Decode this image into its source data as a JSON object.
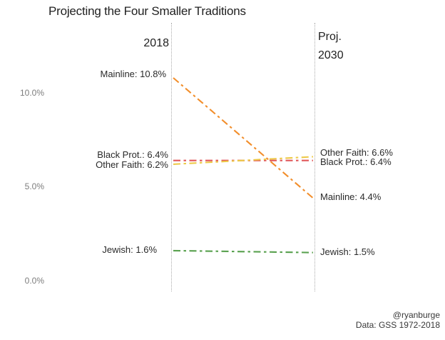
{
  "title": "Projecting the Four Smaller Traditions",
  "columns": {
    "left_header": "2018",
    "right_header_line1": "Proj.",
    "right_header_line2": "2030"
  },
  "axis": {
    "ticks": [
      {
        "label": "10.0%",
        "value": 10.0
      },
      {
        "label": "5.0%",
        "value": 5.0
      },
      {
        "label": "0.0%",
        "value": 0.0
      }
    ]
  },
  "footer": {
    "handle": "@ryanburge",
    "source": "Data: GSS 1972-2018"
  },
  "chart_data": {
    "type": "line",
    "subtype": "slope-chart",
    "categories": [
      "2018",
      "Proj. 2030"
    ],
    "series": [
      {
        "name": "Mainline",
        "values": [
          10.8,
          4.4
        ],
        "color": "#F28E2B",
        "left_label": "Mainline: 10.8%",
        "right_label": "Mainline: 4.4%"
      },
      {
        "name": "Black Prot.",
        "values": [
          6.4,
          6.4
        ],
        "color": "#E15759",
        "left_label": "Black Prot.: 6.4%",
        "right_label": "Black Prot.: 6.4%"
      },
      {
        "name": "Other Faith",
        "values": [
          6.2,
          6.6
        ],
        "color": "#EDC948",
        "left_label": "Other Faith: 6.2%",
        "right_label": "Other Faith: 6.6%"
      },
      {
        "name": "Jewish",
        "values": [
          1.6,
          1.5
        ],
        "color": "#59A14F",
        "left_label": "Jewish: 1.6%",
        "right_label": "Jewish: 1.5%"
      }
    ],
    "title": "Projecting the Four Smaller Traditions",
    "xlabel": "",
    "ylabel": "",
    "ylim": [
      0,
      11.5
    ],
    "yticks_percent": [
      0.0,
      5.0,
      10.0
    ],
    "grid": "off",
    "legend_position": "none (direct line labels at both ends)",
    "line_style": "dash-dot",
    "guide_line_color": "#ababab"
  }
}
